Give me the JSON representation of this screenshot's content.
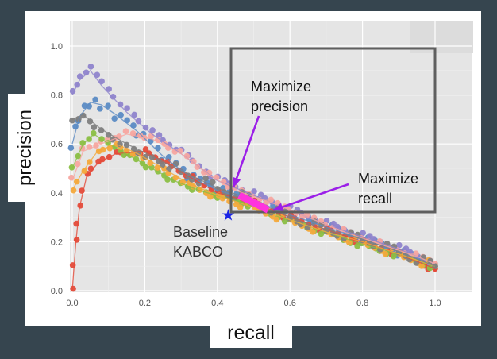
{
  "chart_data": {
    "type": "scatter",
    "title": "",
    "xlabel": "recall",
    "ylabel": "precision",
    "xlim": [
      0,
      1.1
    ],
    "ylim": [
      0,
      1.1
    ],
    "grid": true,
    "x_ticks": [
      "0.0",
      "0.2",
      "0.4",
      "0.6",
      "0.8",
      "1.0"
    ],
    "y_ticks": [
      "0.0",
      "0.2",
      "0.4",
      "0.6",
      "0.8",
      "1.0"
    ],
    "series": [
      {
        "color": "#5b8bc4",
        "points": [
          [
            0.0,
            0.6
          ],
          [
            0.02,
            0.71
          ],
          [
            0.05,
            0.77
          ],
          [
            0.08,
            0.76
          ],
          [
            0.12,
            0.72
          ],
          [
            0.18,
            0.65
          ],
          [
            0.25,
            0.55
          ],
          [
            0.32,
            0.47
          ],
          [
            0.4,
            0.41
          ],
          [
            0.5,
            0.37
          ],
          [
            0.6,
            0.31
          ],
          [
            0.7,
            0.26
          ],
          [
            0.8,
            0.21
          ],
          [
            0.9,
            0.16
          ],
          [
            1.0,
            0.1
          ]
        ]
      },
      {
        "color": "#8f84cc",
        "points": [
          [
            0.0,
            0.8
          ],
          [
            0.02,
            0.86
          ],
          [
            0.05,
            0.9
          ],
          [
            0.08,
            0.84
          ],
          [
            0.15,
            0.73
          ],
          [
            0.22,
            0.64
          ],
          [
            0.3,
            0.56
          ],
          [
            0.4,
            0.45
          ],
          [
            0.5,
            0.39
          ],
          [
            0.6,
            0.33
          ],
          [
            0.7,
            0.27
          ],
          [
            0.8,
            0.22
          ],
          [
            0.9,
            0.17
          ],
          [
            1.0,
            0.11
          ]
        ]
      },
      {
        "color": "#f7a6a0",
        "points": [
          [
            0.0,
            0.45
          ],
          [
            0.03,
            0.57
          ],
          [
            0.08,
            0.6
          ],
          [
            0.15,
            0.64
          ],
          [
            0.22,
            0.62
          ],
          [
            0.3,
            0.56
          ],
          [
            0.38,
            0.47
          ],
          [
            0.45,
            0.41
          ],
          [
            0.55,
            0.36
          ],
          [
            0.65,
            0.3
          ],
          [
            0.75,
            0.24
          ],
          [
            0.85,
            0.19
          ],
          [
            0.95,
            0.14
          ],
          [
            1.0,
            0.11
          ]
        ]
      },
      {
        "color": "#e44b3a",
        "points": [
          [
            0.0,
            0.0
          ],
          [
            0.01,
            0.2
          ],
          [
            0.02,
            0.34
          ],
          [
            0.04,
            0.47
          ],
          [
            0.07,
            0.52
          ],
          [
            0.12,
            0.56
          ],
          [
            0.2,
            0.57
          ],
          [
            0.26,
            0.52
          ],
          [
            0.33,
            0.46
          ],
          [
            0.4,
            0.4
          ],
          [
            0.5,
            0.36
          ],
          [
            0.6,
            0.3
          ],
          [
            0.7,
            0.25
          ],
          [
            0.8,
            0.2
          ],
          [
            0.9,
            0.15
          ],
          [
            1.0,
            0.09
          ]
        ]
      },
      {
        "color": "#8bbf45",
        "points": [
          [
            0.0,
            0.5
          ],
          [
            0.03,
            0.6
          ],
          [
            0.06,
            0.64
          ],
          [
            0.1,
            0.6
          ],
          [
            0.16,
            0.55
          ],
          [
            0.22,
            0.5
          ],
          [
            0.28,
            0.45
          ],
          [
            0.35,
            0.41
          ],
          [
            0.42,
            0.38
          ],
          [
            0.5,
            0.35
          ],
          [
            0.6,
            0.29
          ],
          [
            0.7,
            0.24
          ],
          [
            0.8,
            0.19
          ],
          [
            0.9,
            0.15
          ],
          [
            1.0,
            0.1
          ]
        ]
      },
      {
        "color": "#f4a93c",
        "points": [
          [
            0.0,
            0.41
          ],
          [
            0.03,
            0.49
          ],
          [
            0.07,
            0.57
          ],
          [
            0.12,
            0.6
          ],
          [
            0.18,
            0.56
          ],
          [
            0.25,
            0.5
          ],
          [
            0.32,
            0.44
          ],
          [
            0.4,
            0.39
          ],
          [
            0.5,
            0.34
          ],
          [
            0.6,
            0.29
          ],
          [
            0.7,
            0.24
          ],
          [
            0.8,
            0.2
          ],
          [
            0.9,
            0.15
          ],
          [
            1.0,
            0.1
          ]
        ]
      },
      {
        "color": "#7f7f7f",
        "points": [
          [
            0.0,
            0.7
          ],
          [
            0.03,
            0.72
          ],
          [
            0.08,
            0.66
          ],
          [
            0.15,
            0.6
          ],
          [
            0.22,
            0.55
          ],
          [
            0.3,
            0.49
          ],
          [
            0.4,
            0.42
          ],
          [
            0.5,
            0.37
          ],
          [
            0.6,
            0.3
          ],
          [
            0.7,
            0.25
          ],
          [
            0.8,
            0.21
          ],
          [
            0.9,
            0.16
          ],
          [
            1.0,
            0.1
          ]
        ]
      }
    ],
    "highlight": {
      "color": "#ff33dd",
      "from": [
        0.46,
        0.39
      ],
      "to": [
        0.54,
        0.33
      ]
    },
    "baseline": {
      "x": 0.43,
      "y": 0.31,
      "label_line1": "Baseline",
      "label_line2": "KABCO"
    },
    "annotations": [
      {
        "text_line1": "Maximize",
        "text_line2": "precision",
        "points_to": [
          0.44,
          0.41
        ]
      },
      {
        "text_line1": "Maximize",
        "text_line2": "recall",
        "points_to": [
          0.55,
          0.32
        ]
      }
    ]
  }
}
